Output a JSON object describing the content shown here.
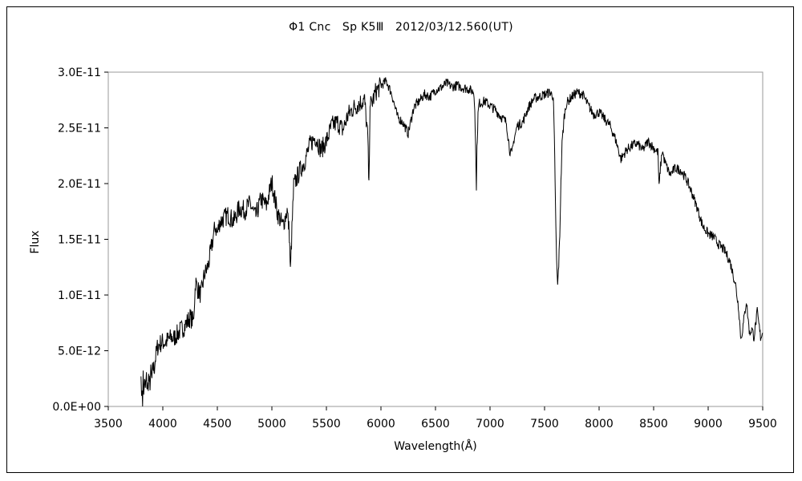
{
  "chart_data": {
    "type": "line",
    "title": "Φ1 Cnc　Sp K5Ⅲ　2012/03/12.560(UT)",
    "xlabel": "Wavelength(Å)",
    "ylabel": "Flux",
    "xlim": [
      3500,
      9500
    ],
    "ylim": [
      0,
      3e-11
    ],
    "x_ticks": [
      "3500",
      "4000",
      "4500",
      "5000",
      "5500",
      "6000",
      "6500",
      "7000",
      "7500",
      "8000",
      "8500",
      "9000",
      "9500"
    ],
    "y_ticks": [
      "0.0E+00",
      "5.0E-12",
      "1.0E-11",
      "1.5E-11",
      "2.0E-11",
      "2.5E-11",
      "3.0E-11"
    ],
    "grid": false,
    "legend": "none",
    "series": [
      {
        "x": [
          3800,
          3805,
          3810,
          3815,
          3820,
          3825,
          3830,
          3840,
          3850,
          3860,
          3870,
          3880,
          3890,
          3900,
          3910,
          3920,
          3930,
          3950,
          3970,
          4000,
          4020,
          4050,
          4080,
          4100,
          4150,
          4200,
          4250,
          4280,
          4300,
          4320,
          4350,
          4380,
          4400,
          4420,
          4450,
          4480,
          4500,
          4520,
          4550,
          4600,
          4650,
          4700,
          4750,
          4800,
          4850,
          4900,
          4950,
          5000,
          5050,
          5100,
          5140,
          5160,
          5170,
          5180,
          5200,
          5250,
          5300,
          5350,
          5400,
          5450,
          5500,
          5550,
          5600,
          5650,
          5700,
          5750,
          5800,
          5850,
          5880,
          5890,
          5895,
          5900,
          5910,
          5950,
          6000,
          6050,
          6100,
          6150,
          6200,
          6250,
          6300,
          6350,
          6400,
          6450,
          6500,
          6550,
          6600,
          6650,
          6700,
          6750,
          6800,
          6850,
          6860,
          6870,
          6875,
          6880,
          6890,
          6900,
          6950,
          7000,
          7050,
          7100,
          7150,
          7180,
          7200,
          7220,
          7250,
          7300,
          7350,
          7400,
          7450,
          7500,
          7550,
          7580,
          7590,
          7600,
          7610,
          7620,
          7630,
          7640,
          7650,
          7660,
          7680,
          7700,
          7750,
          7800,
          7850,
          7900,
          7950,
          8000,
          8050,
          8100,
          8150,
          8200,
          8250,
          8300,
          8350,
          8400,
          8450,
          8500,
          8540,
          8550,
          8560,
          8580,
          8600,
          8650,
          8700,
          8750,
          8800,
          8850,
          8900,
          8950,
          9000,
          9050,
          9100,
          9150,
          9200,
          9250,
          9280,
          9300,
          9320,
          9350,
          9380,
          9400,
          9420,
          9450,
          9480,
          9500
        ],
        "y": [
          3.6e-12,
          2e-13,
          1.8e-12,
          4e-13,
          2.8e-12,
          1e-12,
          2.2e-12,
          1.6e-12,
          2.5e-12,
          1.4e-12,
          2.6e-12,
          1.7e-12,
          3e-12,
          2.4e-12,
          3.6e-12,
          3.3e-12,
          4.2e-12,
          5.3e-12,
          5.6e-12,
          5.8e-12,
          5.7e-12,
          6e-12,
          6.2e-12,
          6.1e-12,
          6.7e-12,
          7.2e-12,
          8e-12,
          7.6e-12,
          1.12e-11,
          1.05e-11,
          1e-11,
          1.18e-11,
          1.22e-11,
          1.28e-11,
          1.45e-11,
          1.62e-11,
          1.55e-11,
          1.65e-11,
          1.68e-11,
          1.72e-11,
          1.66e-11,
          1.78e-11,
          1.76e-11,
          1.82e-11,
          1.7e-11,
          1.86e-11,
          1.8e-11,
          2.02e-11,
          1.74e-11,
          1.62e-11,
          1.76e-11,
          1.55e-11,
          1.2e-11,
          1.48e-11,
          1.98e-11,
          2.1e-11,
          2.2e-11,
          2.35e-11,
          2.42e-11,
          2.3e-11,
          2.38e-11,
          2.52e-11,
          2.55e-11,
          2.48e-11,
          2.62e-11,
          2.68e-11,
          2.72e-11,
          2.75e-11,
          2.4e-11,
          1.94e-11,
          2.35e-11,
          2.76e-11,
          2.7e-11,
          2.82e-11,
          2.88e-11,
          2.92e-11,
          2.8e-11,
          2.6e-11,
          2.55e-11,
          2.45e-11,
          2.68e-11,
          2.74e-11,
          2.8e-11,
          2.78e-11,
          2.84e-11,
          2.86e-11,
          2.9e-11,
          2.87e-11,
          2.88e-11,
          2.86e-11,
          2.85e-11,
          2.82e-11,
          2.7e-11,
          2.2e-11,
          1.98e-11,
          2.3e-11,
          2.62e-11,
          2.72e-11,
          2.74e-11,
          2.7e-11,
          2.66e-11,
          2.6e-11,
          2.55e-11,
          2.3e-11,
          2.26e-11,
          2.4e-11,
          2.52e-11,
          2.55e-11,
          2.68e-11,
          2.76e-11,
          2.78e-11,
          2.8e-11,
          2.82e-11,
          2.78e-11,
          2.4e-11,
          1.8e-11,
          1.3e-11,
          1.08e-11,
          1.28e-11,
          1.55e-11,
          2e-11,
          2.35e-11,
          2.6e-11,
          2.72e-11,
          2.78e-11,
          2.82e-11,
          2.8e-11,
          2.7e-11,
          2.62e-11,
          2.64e-11,
          2.58e-11,
          2.52e-11,
          2.4e-11,
          2.22e-11,
          2.3e-11,
          2.34e-11,
          2.36e-11,
          2.3e-11,
          2.38e-11,
          2.32e-11,
          2.28e-11,
          1.96e-11,
          2.12e-11,
          2.3e-11,
          2.2e-11,
          2.08e-11,
          2.14e-11,
          2.12e-11,
          2.04e-11,
          1.92e-11,
          1.78e-11,
          1.62e-11,
          1.55e-11,
          1.52e-11,
          1.45e-11,
          1.4e-11,
          1.3e-11,
          1.1e-11,
          8.8e-12,
          6e-12,
          7.2e-12,
          9.5e-12,
          6.5e-12,
          7e-12,
          6.2e-12,
          8.5e-12,
          6.2e-12,
          6.6e-12
        ]
      }
    ]
  }
}
